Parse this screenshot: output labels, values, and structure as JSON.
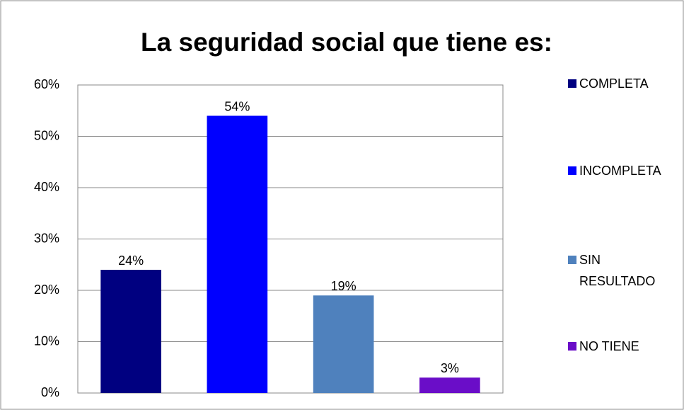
{
  "chart_data": {
    "type": "bar",
    "title": "La seguridad social que tiene es:",
    "categories": [
      null
    ],
    "series": [
      {
        "name": "COMPLETA",
        "color": "#000080",
        "values": [
          24
        ],
        "value_labels": [
          "24%"
        ]
      },
      {
        "name": "INCOMPLETA",
        "color": "#0000ff",
        "values": [
          54
        ],
        "value_labels": [
          "54%"
        ]
      },
      {
        "name": "SIN RESULTADO",
        "color": "#4f81bd",
        "values": [
          19
        ],
        "value_labels": [
          "19%"
        ]
      },
      {
        "name": "NO TIENE",
        "color": "#6a0dc8",
        "values": [
          3
        ],
        "value_labels": [
          "3%"
        ]
      }
    ],
    "ylim": [
      0,
      60
    ],
    "yticks": [
      {
        "value": 0,
        "label": "0%"
      },
      {
        "value": 10,
        "label": "10%"
      },
      {
        "value": 20,
        "label": "20%"
      },
      {
        "value": 30,
        "label": "30%"
      },
      {
        "value": 40,
        "label": "40%"
      },
      {
        "value": 50,
        "label": "50%"
      },
      {
        "value": 60,
        "label": "60%"
      }
    ],
    "grid": true,
    "legend": "right"
  }
}
